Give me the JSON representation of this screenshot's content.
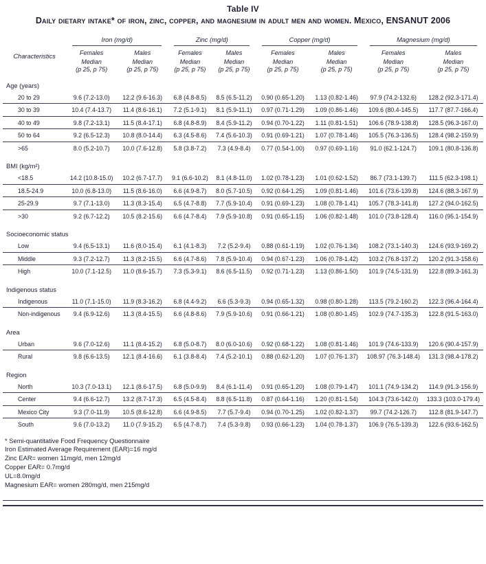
{
  "title": "Table IV",
  "caption": "Daily dietary intake* of iron, zinc, copper, and magnesium in adult men and women. Mexico, ENSANUT 2006",
  "header": {
    "characteristics": "Characteristics",
    "groups": [
      {
        "label": "Iron (mg/d)"
      },
      {
        "label": "Zinc (mg/d)"
      },
      {
        "label": "Copper (mg/d)"
      },
      {
        "label": "Magnesium (mg/d)"
      }
    ],
    "sex_labels": [
      "Females",
      "Males"
    ],
    "stat_label": "Median",
    "stat_sublabel": "(p 25, p 75)"
  },
  "sections": [
    {
      "label": "Age (years)",
      "rows": [
        {
          "label": "20 to 29",
          "values": [
            "9.6 (7.2-13.0)",
            "12.2 (9.6-16.3)",
            "6.8 (4.8-8.5)",
            "8.5 (6.5-11.2)",
            "0.90 (0.65-1.20)",
            "1.13 (0.82-1.46)",
            "97.9 (74.2-132.6)",
            "128.2 (92.3-171.4)"
          ]
        },
        {
          "label": "30 to 39",
          "values": [
            "10.4 (7.4-13.7)",
            "11.4 (8.6-16.1)",
            "7.2 (5.1-9.1)",
            "8.1 (5.9-11.1)",
            "0.97 (0.71-1.29)",
            "1.09 (0.86-1.46)",
            "109.6 (80.4-145.5)",
            "117.7 (87.7-166.4)"
          ]
        },
        {
          "label": "40 to 49",
          "values": [
            "9.8 (7.2-13.1)",
            "11.5 (8.4-17.1)",
            "6.8 (4.8-8.9)",
            "8.4 (5.9-11.2)",
            "0.94 (0.70-1.22)",
            "1.11 (0.81-1.51)",
            "106.6 (78.9-138.8)",
            "128.5 (96.3-167.0)"
          ]
        },
        {
          "label": "50 to 64",
          "values": [
            "9.2 (6.5-12.3)",
            "10.8 (8.0-14.4)",
            "6.3 (4.5-8.6)",
            "7.4 (5.6-10.3)",
            "0.91 (0.69-1.21)",
            "1.07 (0.78-1.46)",
            "105.5 (76.3-136.5)",
            "128.4 (98.2-159.9)"
          ]
        },
        {
          "label": ">65",
          "values": [
            "8.0 (5.2-10.7)",
            "10.0 (7.6-12.8)",
            "5.8 (3.8-7.2)",
            "7.3 (4.9-8.4)",
            "0.77 (0.54-1.00)",
            "0.97 (0.69-1.16)",
            "91.0 (62.1-124.7)",
            "109.1 (80.8-136.8)"
          ]
        }
      ]
    },
    {
      "label": "BMI (kg/m²)",
      "rows": [
        {
          "label": "<18.5",
          "values": [
            "14.2 (10.8-15.0)",
            "10.2 (6.7-17.7)",
            "9.1 (6.6-10.2)",
            "8.1 (4.8-11.0)",
            "1.02 (0.78-1.23)",
            "1.01 (0.62-1.52)",
            "86.7 (73.1-139.7)",
            "111.5 (62.3-198.1)"
          ]
        },
        {
          "label": "18.5-24.9",
          "values": [
            "10.0 (6.8-13.0)",
            "11.5 (8.6-16.0)",
            "6.6 (4.9-8.7)",
            "8.0 (5.7-10.5)",
            "0.92 (0.64-1.25)",
            "1.09 (0.81-1.46)",
            "101.6 (73.6-139.8)",
            "124.6 (88.3-167.9)"
          ]
        },
        {
          "label": "25-29.9",
          "values": [
            "9.7 (7.1-13.0)",
            "11.3 (8.3-15.4)",
            "6.5 (4.7-8.8)",
            "7.7 (5.9-10.4)",
            "0.91 (0.69-1.23)",
            "1.08 (0.78-1.41)",
            "105.7 (78.3-141.8)",
            "127.2 (94.0-162.5)"
          ]
        },
        {
          "label": ">30",
          "values": [
            "9.2 (6.7-12.2)",
            "10.5 (8.2-15.6)",
            "6.6 (4.7-8.4)",
            "7.9 (5.9-10.8)",
            "0.91 (0.65-1.15)",
            "1.06 (0.82-1.48)",
            "101.0 (73.8-128.4)",
            "116.0 (95.1-154.9)"
          ]
        }
      ]
    },
    {
      "label": "Socioeconomic status",
      "rows": [
        {
          "label": "Low",
          "values": [
            "9.4 (6.5-13.1)",
            "11.6 (8.0-15.4)",
            "6.1 (4.1-8.3)",
            "7.2 (5.2-9.4)",
            "0.88 (0.61-1.19)",
            "1.02 (0.76-1.34)",
            "108.2 (73.1-140.3)",
            "124.6 (93.9-169.2)"
          ]
        },
        {
          "label": "Middle",
          "values": [
            "9.3 (7.2-12.7)",
            "11.3 (8.2-15.5)",
            "6.6 (4.7-8.6)",
            "7.8 (5.9-10.4)",
            "0.94 (0.67-1.23)",
            "1.06 (0.78-1.42)",
            "103.2 (76.8-137.2)",
            "120.2 (91.3-158.6)"
          ]
        },
        {
          "label": "High",
          "values": [
            "10.0 (7.1-12.5)",
            "11.0 (8.6-15.7)",
            "7.3 (5.3-9.1)",
            "8.6 (6.5-11.5)",
            "0.92 (0.71-1.23)",
            "1.13 (0.86-1.50)",
            "101.9 (74.5-131.9)",
            "122.8 (89.3-161.3)"
          ]
        }
      ]
    },
    {
      "label": "Indigenous status",
      "rows": [
        {
          "label": "Indigenous",
          "values": [
            "11.0 (7.1-15.0)",
            "11.9 (8.3-16.2)",
            "6.8 (4.4-9.2)",
            "6.6 (5.3-9.3)",
            "0.94 (0.65-1.32)",
            "0.98 (0.80-1.28)",
            "113.5 (79.2-160.2)",
            "122.3 (96.4-164.4)"
          ]
        },
        {
          "label": "Non-indigenous",
          "values": [
            "9.4 (6.9-12.6)",
            "11.3 (8.4-15.5)",
            "6.6 (4.8-8.6)",
            "7.9 (5.9-10.6)",
            "0.91 (0.66-1.21)",
            "1.08 (0.80-1.45)",
            "102.9 (74.7-135.3)",
            "122.8 (91.5-163.0)"
          ]
        }
      ]
    },
    {
      "label": "Area",
      "rows": [
        {
          "label": "Urban",
          "values": [
            "9.6 (7.0-12.6)",
            "11.1 (8.4-15.2)",
            "6.8 (5.0-8.7)",
            "8.0 (6.0-10.6)",
            "0.92 (0.68-1.22)",
            "1.08 (0.81-1.46)",
            "101.9 (74.6-133.9)",
            "120.6 (90.4-157.9)"
          ]
        },
        {
          "label": "Rural",
          "values": [
            "9.8 (6.6-13.5)",
            "12.1 (8.4-16.6)",
            "6.1 (3.8-8.4)",
            "7.4 (5.2-10.1)",
            "0.88 (0.62-1.20)",
            "1.07 (0.76-1.37)",
            "108.97 (76.3-148.4)",
            "131.3 (98.4-178.2)"
          ]
        }
      ]
    },
    {
      "label": "Region",
      "rows": [
        {
          "label": "North",
          "values": [
            "10.3 (7.0-13.1)",
            "12.1 (8.6-17.5)",
            "6.8 (5.0-9.9)",
            "8.4 (6.1-11.4)",
            "0.91 (0.65-1.20)",
            "1.08 (0.79-1.47)",
            "101.1 (74.9-134.2)",
            "114.9 (91.3-156.9)"
          ]
        },
        {
          "label": "Center",
          "values": [
            "9.4 (6.6-12.7)",
            "13.2 (8.7-17.3)",
            "6.5 (4.5-8.4)",
            "8.8 (6.5-11.8)",
            "0.87 (0.64-1.16)",
            "1.20 (0.81-1.54)",
            "104.3 (73.6-142.0)",
            "133.3 (103.0-179.4)"
          ]
        },
        {
          "label": "Mexico City",
          "values": [
            "9.3 (7.0-11.9)",
            "10.5 (8.6-12.8)",
            "6.6 (4.9-8.5)",
            "7.7 (5.7-9.4)",
            "0.94 (0.70-1.25)",
            "1.02 (0.82-1.37)",
            "99.7 (74.2-126.7)",
            "112.8 (81.9-147.7)"
          ]
        },
        {
          "label": "South",
          "values": [
            "9.6 (7.0-13.2)",
            "11.0 (7.9-15.2)",
            "6.5 (4.7-8.7)",
            "7.4 (5.3-9.8)",
            "0.93 (0.66-1.23)",
            "1.04 (0.78-1.37)",
            "106.9 (76.5-139.3)",
            "122.6 (93.6-162.5)"
          ]
        }
      ]
    }
  ],
  "footnotes": [
    "* Semi-quantitative Food Frequency Questionnaire",
    "Iron Estimated Average Requirement (EAR)=16 mg/d",
    "Zinc EAR= women 11mg/d, men 12mg/d",
    "Copper EAR= 0.7mg/d",
    "UL=8.0mg/d",
    "Magnesium EAR= women 280mg/d, men 215mg/d"
  ],
  "colors": {
    "ink": "#1d1d30",
    "rule": "#3a3a52"
  }
}
